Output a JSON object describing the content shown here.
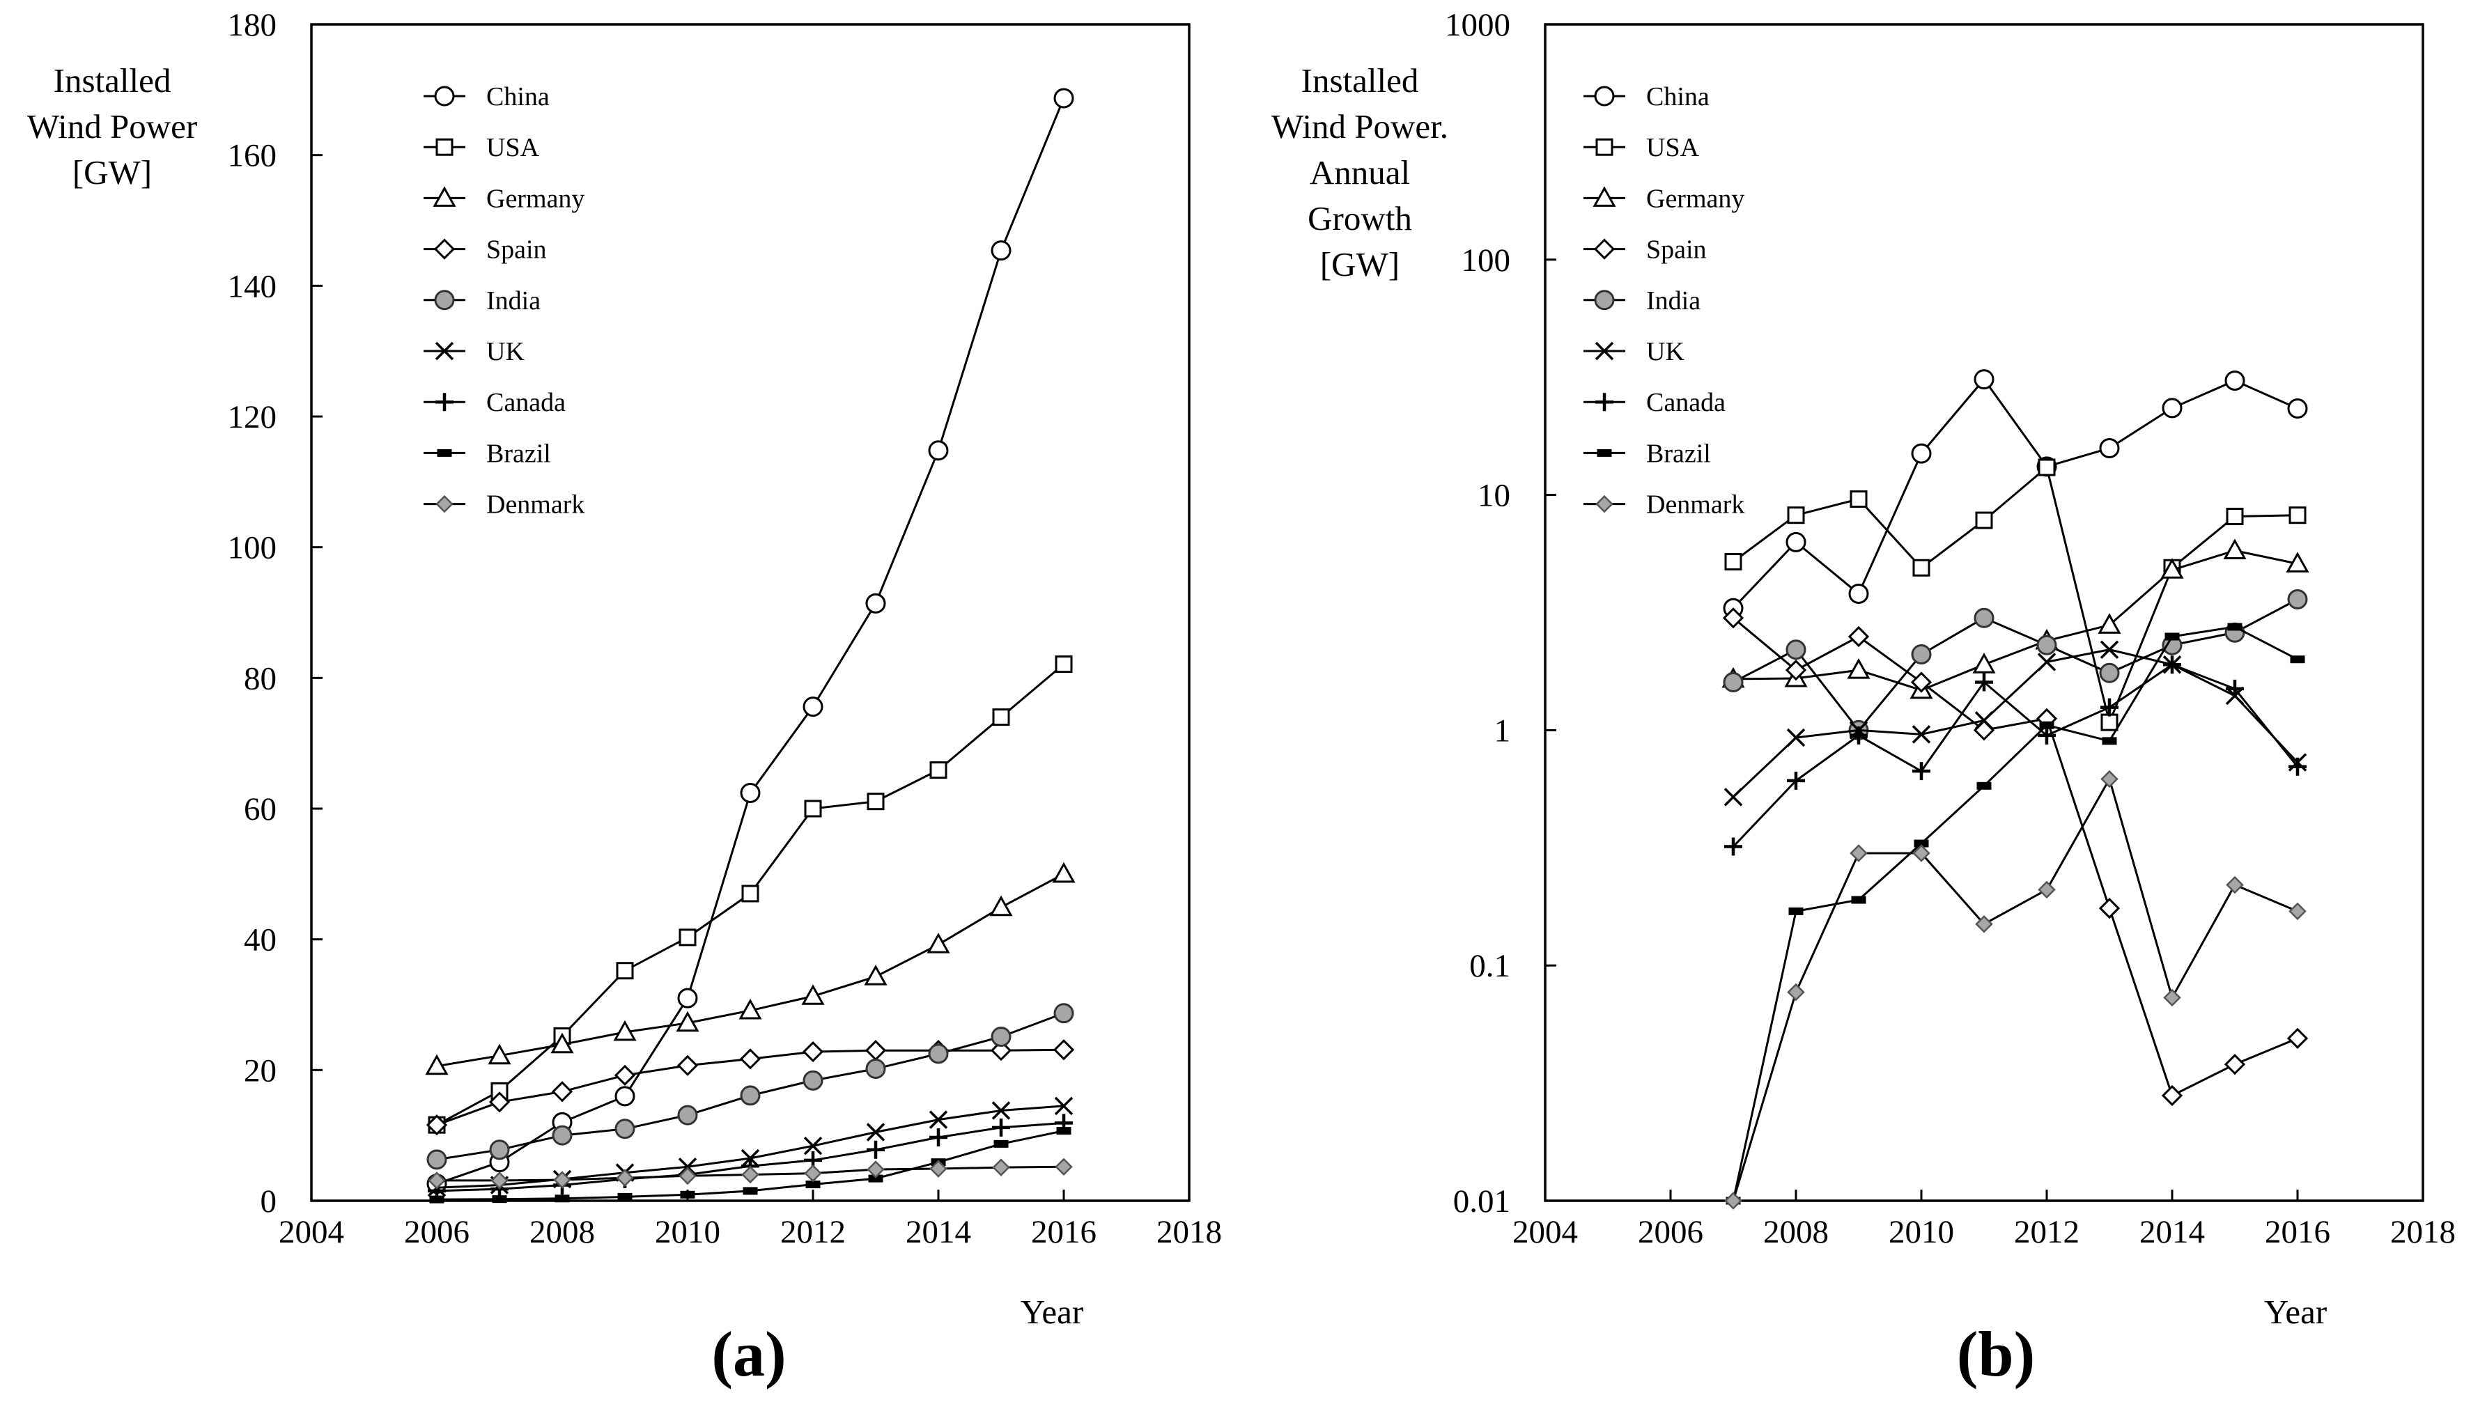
{
  "chart_data": [
    {
      "type": "line",
      "panel_label": "(a)",
      "ylabel_lines": [
        "Installed",
        "Wind Power",
        "[GW]"
      ],
      "xlabel": "Year",
      "xlim": [
        2004,
        2018
      ],
      "xticks": [
        2004,
        2006,
        2008,
        2010,
        2012,
        2014,
        2016,
        2018
      ],
      "ylim": [
        0,
        180
      ],
      "yticks": [
        0,
        20,
        40,
        60,
        80,
        100,
        120,
        140,
        160,
        180
      ],
      "yscale": "linear",
      "legend_position": "top-left",
      "series": [
        {
          "name": "China",
          "marker": "circle-open",
          "x": [
            2006,
            2007,
            2008,
            2009,
            2010,
            2011,
            2012,
            2013,
            2014,
            2015,
            2016
          ],
          "values": [
            2.6,
            5.9,
            12.0,
            16.0,
            31.0,
            62.4,
            75.6,
            91.4,
            114.8,
            145.4,
            168.7
          ]
        },
        {
          "name": "USA",
          "marker": "square-open",
          "x": [
            2006,
            2007,
            2008,
            2009,
            2010,
            2011,
            2012,
            2013,
            2014,
            2015,
            2016
          ],
          "values": [
            11.6,
            16.8,
            25.2,
            35.2,
            40.3,
            47.0,
            60.0,
            61.1,
            65.9,
            74.0,
            82.1
          ]
        },
        {
          "name": "Germany",
          "marker": "triangle-open",
          "x": [
            2006,
            2007,
            2008,
            2009,
            2010,
            2011,
            2012,
            2013,
            2014,
            2015,
            2016
          ],
          "values": [
            20.6,
            22.2,
            23.9,
            25.8,
            27.2,
            29.1,
            31.3,
            34.3,
            39.2,
            44.9,
            50.0
          ]
        },
        {
          "name": "Spain",
          "marker": "diamond-open",
          "x": [
            2006,
            2007,
            2008,
            2009,
            2010,
            2011,
            2012,
            2013,
            2014,
            2015,
            2016
          ],
          "values": [
            11.6,
            15.1,
            16.7,
            19.2,
            20.7,
            21.7,
            22.8,
            23.0,
            23.0,
            23.0,
            23.1
          ]
        },
        {
          "name": "India",
          "marker": "circle-gray",
          "x": [
            2006,
            2007,
            2008,
            2009,
            2010,
            2011,
            2012,
            2013,
            2014,
            2015,
            2016
          ],
          "values": [
            6.3,
            7.8,
            10.0,
            11.0,
            13.1,
            16.1,
            18.4,
            20.2,
            22.5,
            25.1,
            28.7
          ]
        },
        {
          "name": "UK",
          "marker": "x",
          "x": [
            2006,
            2007,
            2008,
            2009,
            2010,
            2011,
            2012,
            2013,
            2014,
            2015,
            2016
          ],
          "values": [
            2.0,
            2.4,
            3.3,
            4.3,
            5.2,
            6.5,
            8.4,
            10.5,
            12.4,
            13.8,
            14.5
          ]
        },
        {
          "name": "Canada",
          "marker": "plus",
          "x": [
            2006,
            2007,
            2008,
            2009,
            2010,
            2011,
            2012,
            2013,
            2014,
            2015,
            2016
          ],
          "values": [
            1.5,
            1.8,
            2.4,
            3.3,
            4.0,
            5.3,
            6.2,
            7.8,
            9.7,
            11.2,
            11.9
          ]
        },
        {
          "name": "Brazil",
          "marker": "bar-filled",
          "x": [
            2006,
            2007,
            2008,
            2009,
            2010,
            2011,
            2012,
            2013,
            2014,
            2015,
            2016
          ],
          "values": [
            0.2,
            0.25,
            0.34,
            0.6,
            0.93,
            1.5,
            2.5,
            3.4,
            5.9,
            8.7,
            10.7
          ]
        },
        {
          "name": "Denmark",
          "marker": "diamond-gray",
          "x": [
            2006,
            2007,
            2008,
            2009,
            2010,
            2011,
            2012,
            2013,
            2014,
            2015,
            2016
          ],
          "values": [
            3.1,
            3.1,
            3.2,
            3.5,
            3.8,
            4.0,
            4.2,
            4.8,
            4.9,
            5.1,
            5.2
          ]
        }
      ]
    },
    {
      "type": "line",
      "panel_label": "(b)",
      "ylabel_lines": [
        "Installed",
        "Wind Power.",
        "Annual",
        "Growth",
        "[GW]"
      ],
      "xlabel": "Year",
      "xlim": [
        2004,
        2018
      ],
      "xticks": [
        2004,
        2006,
        2008,
        2010,
        2012,
        2014,
        2016,
        2018
      ],
      "ylim": [
        0.01,
        1000
      ],
      "yticks": [
        0.01,
        0.1,
        1,
        10,
        100,
        1000
      ],
      "ytick_labels": [
        "0.01",
        "0.1",
        "1",
        "10",
        "100",
        "1000"
      ],
      "yscale": "log",
      "legend_position": "top-left",
      "series": [
        {
          "name": "China",
          "marker": "circle-open",
          "x": [
            2007,
            2008,
            2009,
            2010,
            2011,
            2012,
            2013,
            2014,
            2015,
            2016
          ],
          "values": [
            3.3,
            6.3,
            3.8,
            15.0,
            31.0,
            13.2,
            15.8,
            23.4,
            30.6,
            23.3
          ]
        },
        {
          "name": "USA",
          "marker": "square-open",
          "x": [
            2007,
            2008,
            2009,
            2010,
            2011,
            2012,
            2013,
            2014,
            2015,
            2016
          ],
          "values": [
            5.2,
            8.2,
            9.6,
            4.9,
            7.8,
            13.1,
            1.08,
            4.9,
            8.1,
            8.2
          ]
        },
        {
          "name": "Germany",
          "marker": "triangle-open",
          "x": [
            2007,
            2008,
            2009,
            2010,
            2011,
            2012,
            2013,
            2014,
            2015,
            2016
          ],
          "values": [
            1.65,
            1.66,
            1.8,
            1.48,
            1.9,
            2.4,
            2.8,
            4.8,
            5.8,
            5.1
          ]
        },
        {
          "name": "Spain",
          "marker": "diamond-open",
          "x": [
            2007,
            2008,
            2009,
            2010,
            2011,
            2012,
            2013,
            2014,
            2015,
            2016
          ],
          "values": [
            3.0,
            1.8,
            2.5,
            1.6,
            1.0,
            1.12,
            0.175,
            0.028,
            0.038,
            0.049
          ]
        },
        {
          "name": "India",
          "marker": "circle-gray",
          "x": [
            2007,
            2008,
            2009,
            2010,
            2011,
            2012,
            2013,
            2014,
            2015,
            2016
          ],
          "values": [
            1.6,
            2.2,
            1.0,
            2.1,
            3.0,
            2.3,
            1.75,
            2.3,
            2.6,
            3.6
          ]
        },
        {
          "name": "UK",
          "marker": "x",
          "x": [
            2007,
            2008,
            2009,
            2010,
            2011,
            2012,
            2013,
            2014,
            2015,
            2016
          ],
          "values": [
            0.52,
            0.93,
            1.0,
            0.96,
            1.1,
            1.95,
            2.2,
            1.9,
            1.4,
            0.73
          ]
        },
        {
          "name": "Canada",
          "marker": "plus",
          "x": [
            2007,
            2008,
            2009,
            2010,
            2011,
            2012,
            2013,
            2014,
            2015,
            2016
          ],
          "values": [
            0.32,
            0.61,
            0.95,
            0.67,
            1.6,
            0.95,
            1.25,
            1.9,
            1.5,
            0.7
          ]
        },
        {
          "name": "Brazil",
          "marker": "bar-filled",
          "x": [
            2007,
            2008,
            2009,
            2010,
            2011,
            2012,
            2013,
            2014,
            2015,
            2016
          ],
          "values": [
            0.01,
            0.17,
            0.19,
            0.33,
            0.58,
            1.05,
            0.9,
            2.5,
            2.75,
            2.0
          ]
        },
        {
          "name": "Denmark",
          "marker": "diamond-gray",
          "x": [
            2007,
            2008,
            2009,
            2010,
            2011,
            2012,
            2013,
            2014,
            2015,
            2016
          ],
          "values": [
            0.01,
            0.077,
            0.3,
            0.3,
            0.15,
            0.21,
            0.62,
            0.073,
            0.22,
            0.17
          ]
        }
      ]
    }
  ]
}
